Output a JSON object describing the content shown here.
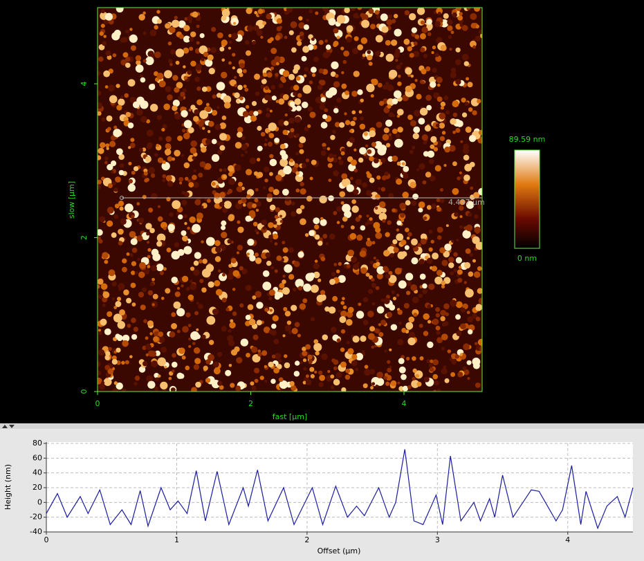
{
  "image": {
    "y_axis_label": "slow [µm]",
    "x_axis_label": "fast [µm]",
    "xticks": [
      0,
      2,
      4
    ],
    "yticks": [
      0,
      2,
      4
    ],
    "xlim": [
      0,
      5.02
    ],
    "ylim": [
      0,
      4.99
    ],
    "colorbar_max_label": "89.59 nm",
    "colorbar_min_label": "0 nm",
    "line_label": "4.497 µm"
  },
  "chart_data": {
    "type": "line",
    "x_axis_label": "Offset (µm)",
    "y_axis_label": "Height (nm)",
    "xlim": [
      0,
      4.5
    ],
    "ylim": [
      -40,
      80
    ],
    "xticks": [
      0,
      1,
      2,
      3,
      4
    ],
    "yticks": [
      -40,
      -20,
      0,
      20,
      40,
      60,
      80
    ],
    "grid": true,
    "series": [
      {
        "color": "#1a1aa0",
        "x": [
          0,
          0.085,
          0.16,
          0.26,
          0.32,
          0.41,
          0.49,
          0.58,
          0.65,
          0.72,
          0.78,
          0.88,
          0.95,
          1.01,
          1.08,
          1.15,
          1.22,
          1.31,
          1.4,
          1.51,
          1.55,
          1.62,
          1.7,
          1.82,
          1.9,
          2.04,
          2.12,
          2.22,
          2.31,
          2.38,
          2.44,
          2.55,
          2.63,
          2.68,
          2.75,
          2.82,
          2.89,
          2.99,
          3.04,
          3.1,
          3.18,
          3.28,
          3.33,
          3.4,
          3.44,
          3.5,
          3.58,
          3.72,
          3.78,
          3.91,
          3.96,
          4.03,
          4.1,
          4.14,
          4.23,
          4.3,
          4.38,
          4.44,
          4.5
        ],
        "values": [
          -15,
          12,
          -20,
          8,
          -15,
          17,
          -30,
          -10,
          -30,
          16,
          -32,
          20,
          -10,
          2,
          -15,
          43,
          -25,
          42,
          -30,
          20,
          -5,
          44,
          -25,
          20,
          -30,
          20,
          -30,
          22,
          -20,
          -5,
          -18,
          20,
          -20,
          0,
          72,
          -25,
          -30,
          10,
          -30,
          63,
          -25,
          0,
          -25,
          5,
          -20,
          37,
          -20,
          17,
          15,
          -25,
          -10,
          50,
          -30,
          15,
          -35,
          -5,
          8,
          -20,
          20
        ]
      }
    ]
  }
}
